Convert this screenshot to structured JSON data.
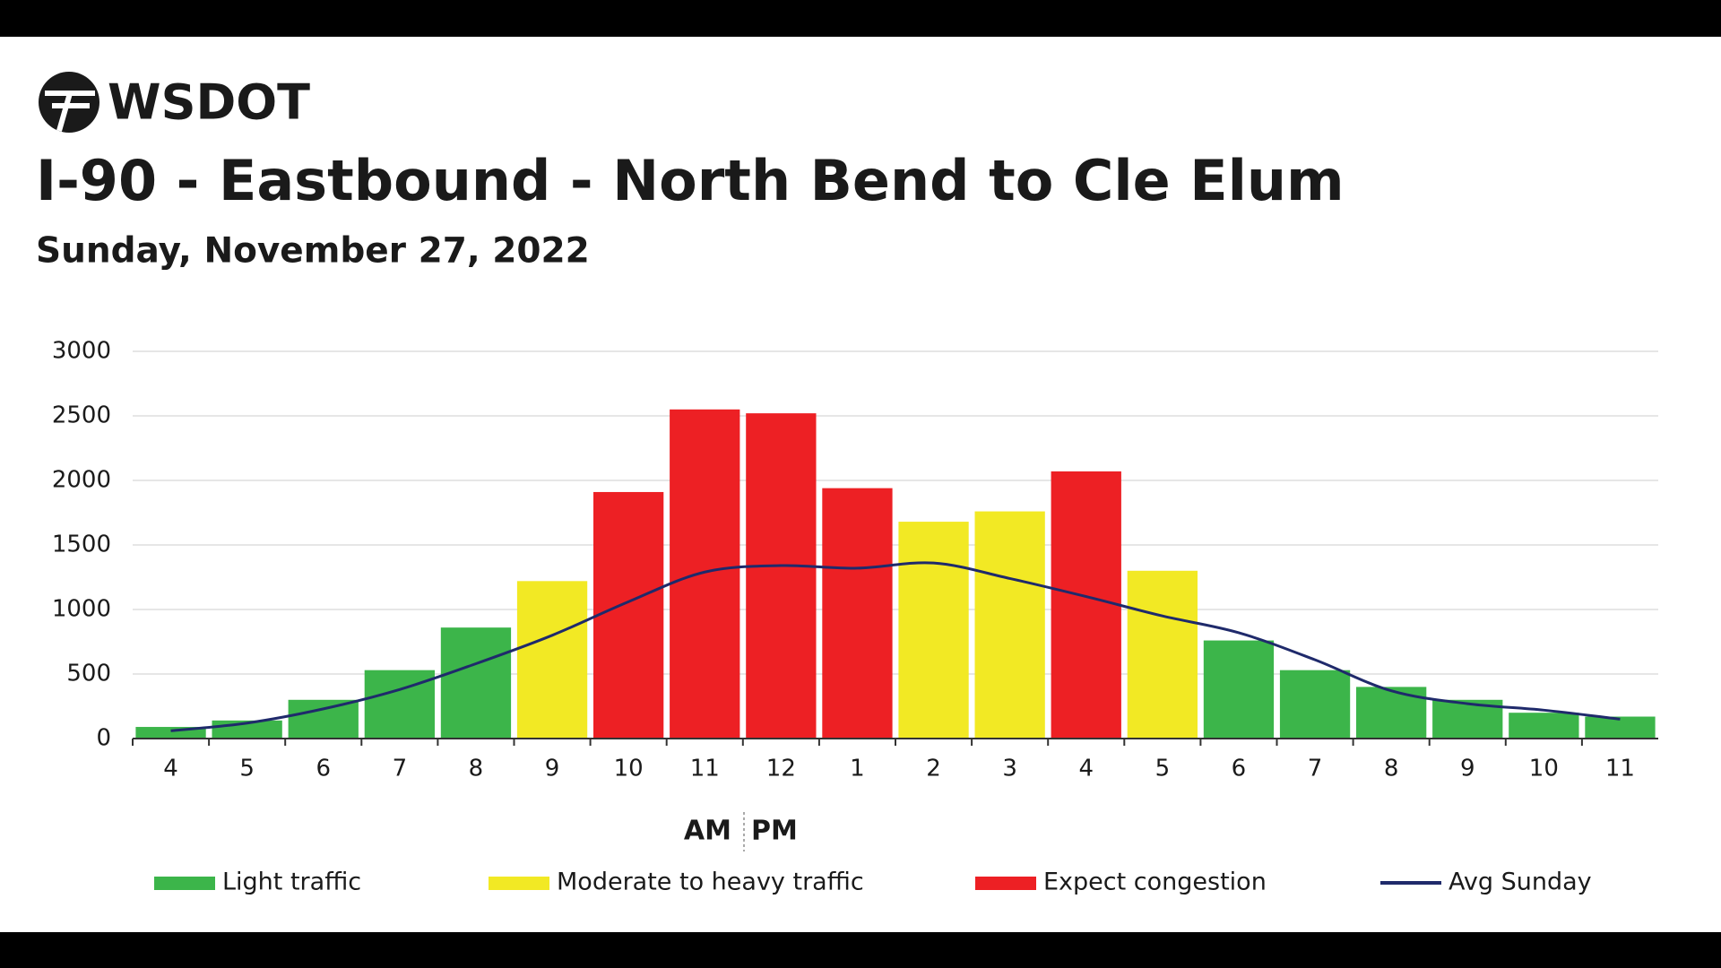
{
  "logo": "WSDOT",
  "chart_data": {
    "type": "bar",
    "title": "I-90 - Eastbound - North Bend to Cle Elum",
    "subtitle": "Sunday, November 27, 2022",
    "categories": [
      "4",
      "5",
      "6",
      "7",
      "8",
      "9",
      "10",
      "11",
      "12",
      "1",
      "2",
      "3",
      "4",
      "5",
      "6",
      "7",
      "8",
      "9",
      "10",
      "11"
    ],
    "am_label": "AM",
    "pm_label": "PM",
    "series": [
      {
        "name": "Light traffic",
        "type": "bar",
        "color": "#3cb54a",
        "values": [
          90,
          140,
          300,
          530,
          860,
          null,
          null,
          null,
          null,
          null,
          null,
          null,
          null,
          null,
          760,
          530,
          400,
          300,
          200,
          170
        ]
      },
      {
        "name": "Moderate to heavy traffic",
        "type": "bar",
        "color": "#f2e924",
        "values": [
          null,
          null,
          null,
          null,
          null,
          1220,
          null,
          null,
          null,
          null,
          1680,
          1760,
          null,
          1300,
          null,
          null,
          null,
          null,
          null,
          null
        ]
      },
      {
        "name": "Expect congestion",
        "type": "bar",
        "color": "#ed2024",
        "values": [
          null,
          null,
          null,
          null,
          null,
          null,
          1910,
          2550,
          2520,
          1940,
          null,
          null,
          2070,
          null,
          null,
          null,
          null,
          null,
          null,
          null
        ]
      },
      {
        "name": "Avg Sunday",
        "type": "line",
        "color": "#1f2a6b",
        "values": [
          60,
          120,
          230,
          380,
          580,
          800,
          1060,
          1290,
          1340,
          1320,
          1360,
          1240,
          1100,
          950,
          820,
          610,
          370,
          270,
          220,
          150
        ]
      }
    ],
    "ylim": [
      0,
      3000
    ],
    "yticks": [
      0,
      500,
      1000,
      1500,
      2000,
      2500,
      3000
    ],
    "grid": true
  }
}
